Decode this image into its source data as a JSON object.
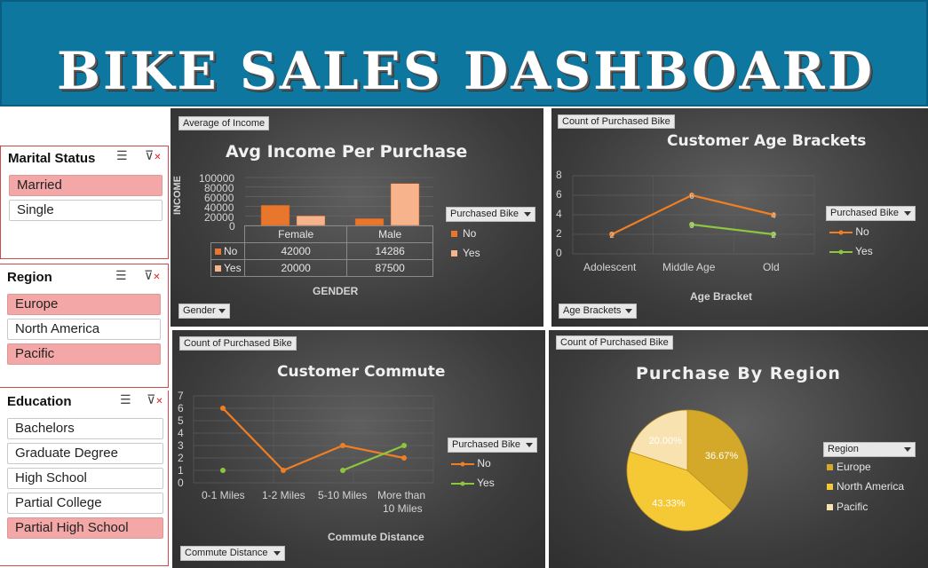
{
  "header": {
    "title": "BIKE SALES DASHBOARD"
  },
  "slicers": {
    "marital": {
      "title": "Marital Status",
      "items": [
        {
          "label": "Married",
          "selected": true
        },
        {
          "label": "Single",
          "selected": false
        }
      ]
    },
    "region": {
      "title": "Region",
      "items": [
        {
          "label": "Europe",
          "selected": true
        },
        {
          "label": "North America",
          "selected": false
        },
        {
          "label": "Pacific",
          "selected": true
        }
      ]
    },
    "education": {
      "title": "Education",
      "items": [
        {
          "label": "Bachelors",
          "selected": false
        },
        {
          "label": "Graduate Degree",
          "selected": false
        },
        {
          "label": "High School",
          "selected": false
        },
        {
          "label": "Partial College",
          "selected": false
        },
        {
          "label": "Partial High School",
          "selected": true
        }
      ]
    }
  },
  "colors": {
    "banner": "#0e77a0",
    "no": "#f07f24",
    "yes": "#8cc63e",
    "slicer_selected": "#f3a7a7",
    "bar_no": "#e8762c",
    "bar_yes": "#f7b48c",
    "pie_europe": "#d4a92a",
    "pie_na": "#f5c936",
    "pie_pacific": "#f8e3b0"
  },
  "panels": {
    "income": {
      "field_tag": "Average of Income",
      "axis_button": "Gender",
      "legend_button": "Purchased Bike",
      "table": {
        "header": [
          "Female",
          "Male"
        ],
        "rows": [
          {
            "key": "No",
            "values": [
              "42000",
              "14286"
            ]
          },
          {
            "key": "Yes",
            "values": [
              "20000",
              "87500"
            ]
          }
        ]
      }
    },
    "age": {
      "field_tag": "Count of Purchased Bike",
      "axis_button": "Age Brackets",
      "legend_button": "Purchased Bike"
    },
    "commute": {
      "field_tag": "Count of Purchased Bike",
      "axis_button": "Commute Distance",
      "legend_button": "Purchased Bike"
    },
    "region": {
      "field_tag": "Count of Purchased Bike",
      "legend_button": "Region"
    }
  },
  "chart_data": [
    {
      "type": "bar",
      "title": "Avg Income Per Purchase",
      "xlabel": "GENDER",
      "ylabel": "INCOME",
      "categories": [
        "Female",
        "Male"
      ],
      "series": [
        {
          "name": "No",
          "values": [
            42000,
            14286
          ]
        },
        {
          "name": "Yes",
          "values": [
            20000,
            87500
          ]
        }
      ],
      "ylim": [
        0,
        100000
      ],
      "yticks": [
        "100000",
        "80000",
        "60000",
        "40000",
        "20000",
        "0"
      ],
      "legend": "right"
    },
    {
      "type": "line",
      "title": "Customer Age Brackets",
      "xlabel": "Age Bracket",
      "ylabel": "",
      "categories": [
        "Adolescent",
        "Middle Age",
        "Old"
      ],
      "series": [
        {
          "name": "No",
          "values": [
            2,
            6,
            4
          ]
        },
        {
          "name": "Yes",
          "values": [
            null,
            3,
            2
          ]
        }
      ],
      "data_labels": {
        "No": [
          "2",
          "6",
          "4"
        ],
        "Yes": [
          "",
          "3",
          "2"
        ]
      },
      "ylim": [
        0,
        8
      ],
      "yticks": [
        "8",
        "6",
        "4",
        "2",
        "0"
      ],
      "legend": "right"
    },
    {
      "type": "line",
      "title": "Customer Commute",
      "xlabel": "Commute Distance",
      "ylabel": "",
      "categories": [
        "0-1 Miles",
        "1-2 Miles",
        "5-10 Miles",
        "More than 10 Miles"
      ],
      "category_lines": [
        [
          "0-1 Miles"
        ],
        [
          "1-2 Miles"
        ],
        [
          "5-10 Miles"
        ],
        [
          "More than",
          "10 Miles"
        ]
      ],
      "series": [
        {
          "name": "No",
          "values": [
            6,
            1,
            3,
            2
          ]
        },
        {
          "name": "Yes",
          "values": [
            1,
            null,
            1,
            3
          ]
        }
      ],
      "ylim": [
        0,
        7
      ],
      "yticks": [
        "7",
        "6",
        "5",
        "4",
        "3",
        "2",
        "1",
        "0"
      ],
      "legend": "right"
    },
    {
      "type": "pie",
      "title": "Purchase By Region",
      "labels": [
        "Europe",
        "North America",
        "Pacific"
      ],
      "values": [
        36.67,
        43.33,
        20.0
      ],
      "value_labels": [
        "36.67%",
        "43.33%",
        "20.00%"
      ],
      "legend": "right"
    }
  ]
}
